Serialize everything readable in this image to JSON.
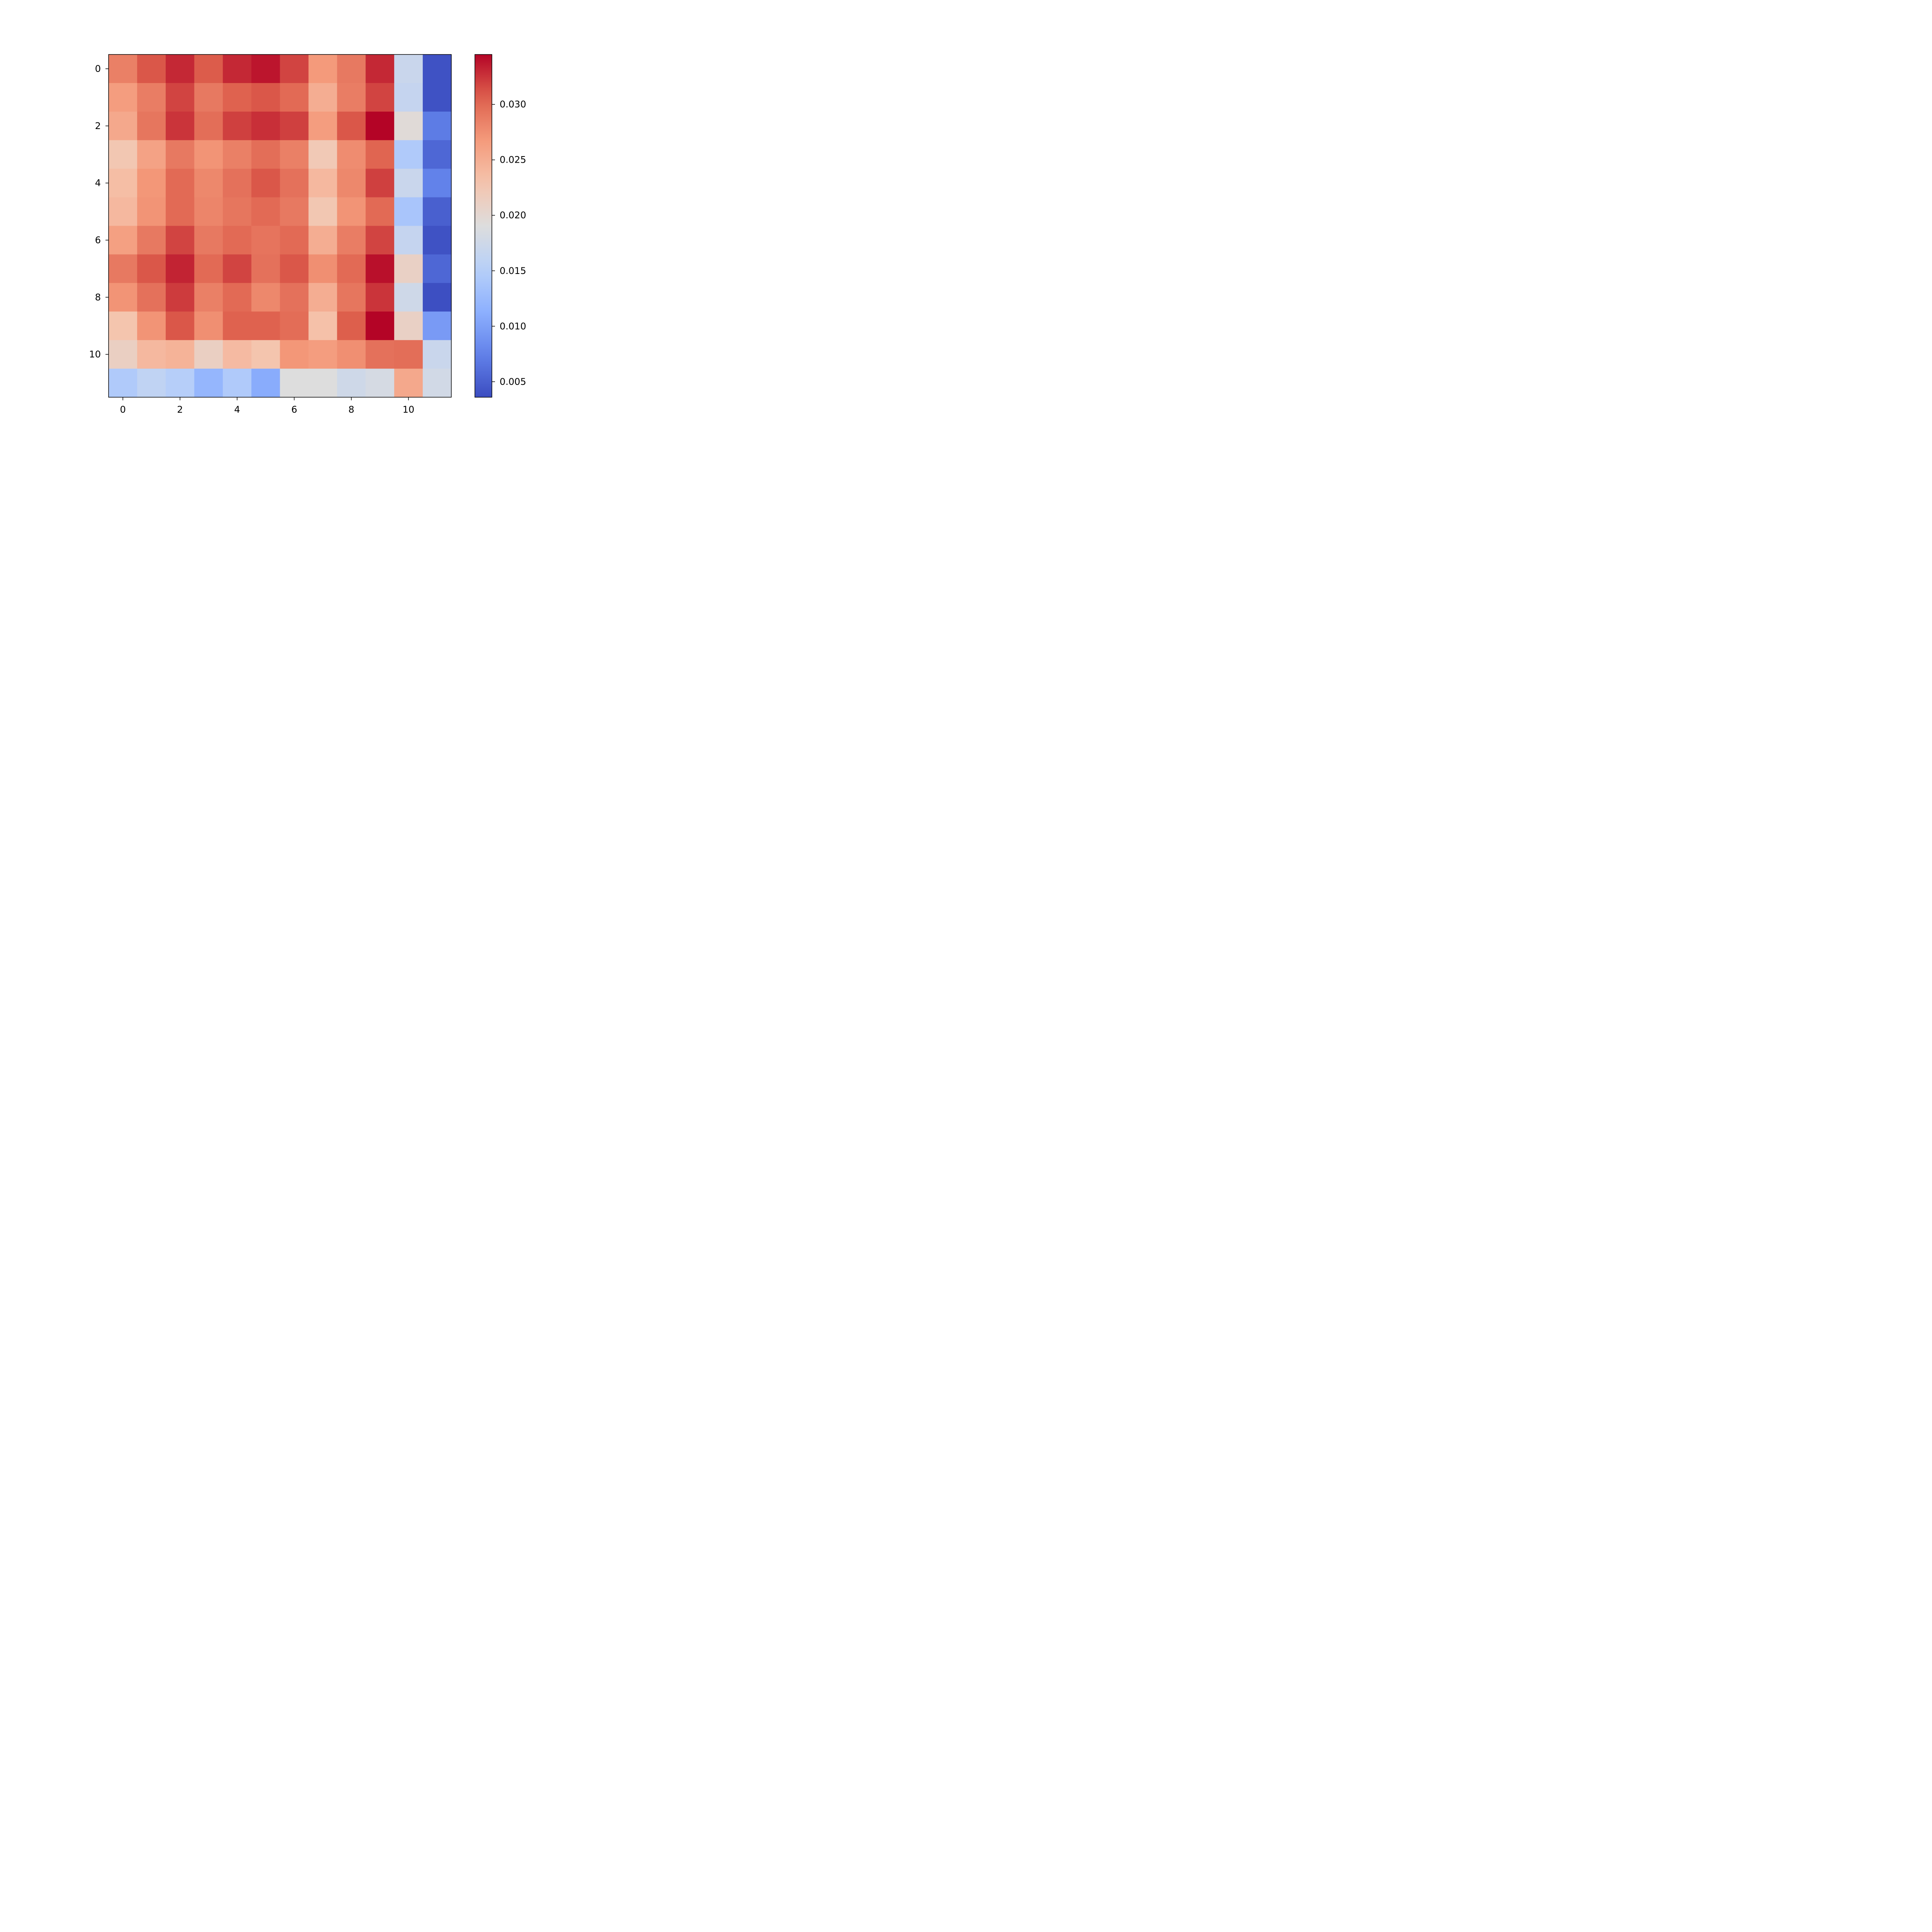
{
  "chart_data": {
    "type": "heatmap",
    "title": "",
    "xlabel": "",
    "ylabel": "",
    "colormap": "coolwarm",
    "x_ticks": [
      0,
      2,
      4,
      6,
      8,
      10
    ],
    "y_ticks": [
      0,
      2,
      4,
      6,
      8,
      10
    ],
    "x_tick_labels": [
      "0",
      "2",
      "4",
      "6",
      "8",
      "10"
    ],
    "y_tick_labels": [
      "0",
      "2",
      "4",
      "6",
      "8",
      "10"
    ],
    "xlim": [
      -0.5,
      11.5
    ],
    "ylim": [
      11.5,
      -0.5
    ],
    "colorbar": {
      "range": [
        0.0036,
        0.0345
      ],
      "ticks": [
        0.005,
        0.01,
        0.015,
        0.02,
        0.025,
        0.03
      ],
      "tick_labels": [
        "0.005",
        "0.010",
        "0.015",
        "0.020",
        "0.025",
        "0.030"
      ]
    },
    "values": [
      [
        0.0285,
        0.031,
        0.033,
        0.0308,
        0.033,
        0.0338,
        0.0318,
        0.0268,
        0.029,
        0.033,
        0.017,
        0.004
      ],
      [
        0.0265,
        0.0287,
        0.0318,
        0.029,
        0.0305,
        0.031,
        0.03,
        0.025,
        0.0287,
        0.0318,
        0.0165,
        0.004
      ],
      [
        0.0255,
        0.0292,
        0.0325,
        0.0297,
        0.032,
        0.0327,
        0.032,
        0.0265,
        0.031,
        0.0345,
        0.0195,
        0.007
      ],
      [
        0.0225,
        0.026,
        0.029,
        0.0272,
        0.0285,
        0.0297,
        0.0285,
        0.0222,
        0.0277,
        0.0303,
        0.0145,
        0.0055
      ],
      [
        0.0235,
        0.027,
        0.03,
        0.028,
        0.0295,
        0.031,
        0.0295,
        0.024,
        0.028,
        0.032,
        0.017,
        0.0075
      ],
      [
        0.024,
        0.0272,
        0.03,
        0.0282,
        0.0292,
        0.03,
        0.029,
        0.0225,
        0.0272,
        0.03,
        0.0138,
        0.005
      ],
      [
        0.0262,
        0.029,
        0.0318,
        0.029,
        0.03,
        0.0293,
        0.03,
        0.025,
        0.0287,
        0.0318,
        0.0165,
        0.004
      ],
      [
        0.029,
        0.031,
        0.0332,
        0.03,
        0.0318,
        0.0295,
        0.031,
        0.0275,
        0.03,
        0.034,
        0.021,
        0.0055
      ],
      [
        0.0272,
        0.0295,
        0.0322,
        0.0285,
        0.03,
        0.028,
        0.0295,
        0.025,
        0.0292,
        0.0325,
        0.0175,
        0.0038
      ],
      [
        0.0228,
        0.0272,
        0.031,
        0.0275,
        0.0305,
        0.0305,
        0.0298,
        0.0232,
        0.0307,
        0.0345,
        0.021,
        0.0095
      ],
      [
        0.0212,
        0.024,
        0.0245,
        0.0212,
        0.0238,
        0.0228,
        0.027,
        0.0265,
        0.0275,
        0.0295,
        0.0297,
        0.017
      ],
      [
        0.0145,
        0.016,
        0.015,
        0.012,
        0.0145,
        0.011,
        0.019,
        0.019,
        0.0175,
        0.0182,
        0.0255,
        0.0178
      ]
    ]
  }
}
